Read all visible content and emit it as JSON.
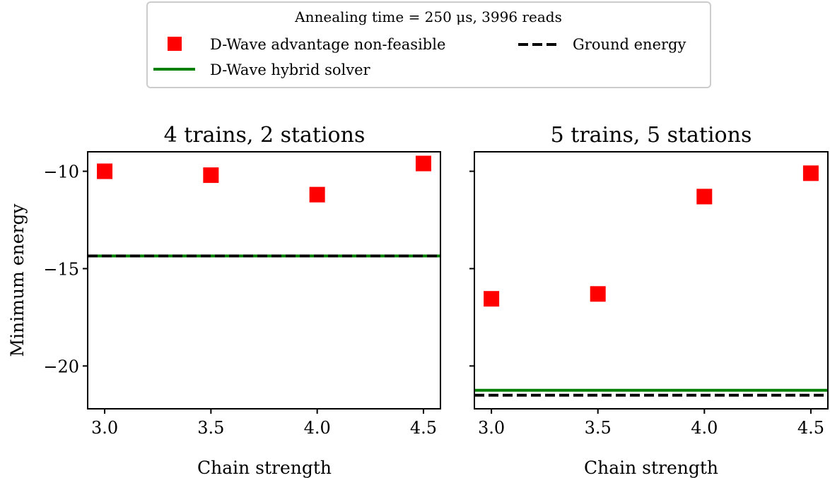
{
  "legend": {
    "title": "Annealing time = 250 μs, 3996 reads",
    "entries": [
      {
        "label": "D-Wave advantage non-feasible",
        "marker": "square",
        "color": "#ff0000"
      },
      {
        "label": "Ground energy",
        "marker": "dashed-line",
        "color": "#000000"
      },
      {
        "label": "D-Wave hybrid solver",
        "marker": "solid-line",
        "color": "#008000"
      }
    ]
  },
  "chart_data": [
    {
      "type": "scatter",
      "title": "4 trains, 2 stations",
      "xlabel": "Chain strength",
      "ylabel": "Minimum energy",
      "xlim": [
        2.92,
        4.58
      ],
      "ylim": [
        -22.2,
        -9.0
      ],
      "xticks": [
        "3.0",
        "3.5",
        "4.0",
        "4.5"
      ],
      "yticks": [
        "−10",
        "−15",
        "−20"
      ],
      "series": [
        {
          "name": "D-Wave advantage non-feasible",
          "x": [
            3.0,
            3.5,
            4.0,
            4.5
          ],
          "y": [
            -10.0,
            -10.2,
            -11.2,
            -9.6
          ],
          "color": "#ff0000"
        }
      ],
      "hlines": [
        {
          "name": "D-Wave hybrid solver",
          "y": -14.35,
          "color": "#008000",
          "style": "solid"
        },
        {
          "name": "Ground energy",
          "y": -14.35,
          "color": "#000000",
          "style": "dashed"
        }
      ]
    },
    {
      "type": "scatter",
      "title": "5 trains, 5 stations",
      "xlabel": "Chain strength",
      "ylabel": "",
      "xlim": [
        2.92,
        4.58
      ],
      "ylim": [
        -22.2,
        -9.0
      ],
      "xticks": [
        "3.0",
        "3.5",
        "4.0",
        "4.5"
      ],
      "yticks": [],
      "series": [
        {
          "name": "D-Wave advantage non-feasible",
          "x": [
            3.0,
            3.5,
            4.0,
            4.5
          ],
          "y": [
            -16.55,
            -16.3,
            -11.3,
            -10.1
          ],
          "color": "#ff0000"
        }
      ],
      "hlines": [
        {
          "name": "D-Wave hybrid solver",
          "y": -21.25,
          "color": "#008000",
          "style": "solid"
        },
        {
          "name": "Ground energy",
          "y": -21.5,
          "color": "#000000",
          "style": "dashed"
        }
      ]
    }
  ]
}
